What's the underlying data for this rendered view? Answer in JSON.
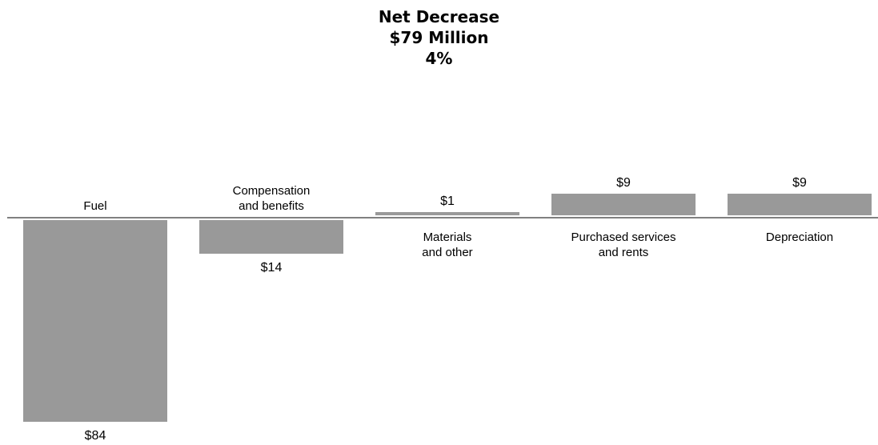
{
  "header": {
    "line1": "Net Decrease",
    "line2": "$79 Million",
    "line3": "4%"
  },
  "chart_data": {
    "type": "bar",
    "categories": [
      "Fuel",
      "Compensation\nand benefits",
      "Materials\nand other",
      "Purchased services\nand rents",
      "Depreciation"
    ],
    "values": [
      -84,
      -14,
      1,
      9,
      9
    ],
    "value_labels": [
      "$84",
      "$14",
      "$1",
      "$9",
      "$9"
    ],
    "colors": {
      "bar": "#999999",
      "axis": "#000000"
    },
    "title": "Net Decrease $79 Million 4%",
    "xlabel": "",
    "ylabel": "",
    "grid": false,
    "legend": "none"
  }
}
